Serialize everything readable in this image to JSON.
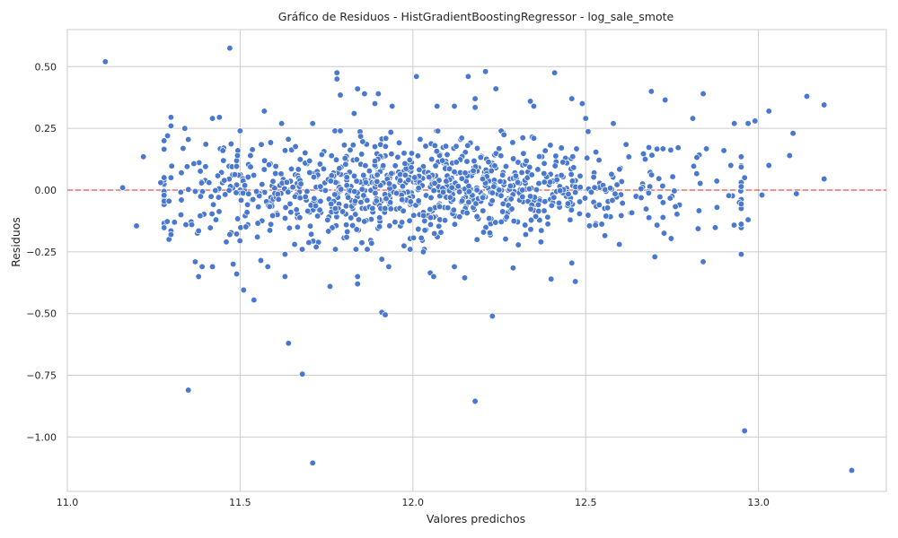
{
  "chart_data": {
    "type": "scatter",
    "title": "Gráfico de Residuos - HistGradientBoostingRegressor - log_sale_smote",
    "xlabel": "Valores predichos",
    "ylabel": "Residuos",
    "xlim": [
      11.0,
      13.37
    ],
    "ylim": [
      -1.22,
      0.65
    ],
    "xticks": [
      11.0,
      11.5,
      12.0,
      12.5,
      13.0
    ],
    "xtick_labels": [
      "11.0",
      "11.5",
      "12.0",
      "12.5",
      "13.0"
    ],
    "yticks": [
      0.5,
      0.25,
      0.0,
      -0.25,
      -0.5,
      -0.75,
      -1.0
    ],
    "ytick_labels": [
      "0.50",
      "0.25",
      "0.00",
      "−0.25",
      "−0.50",
      "−0.75",
      "−1.00"
    ],
    "grid": true,
    "reference_line": {
      "y": 0.0,
      "color": "#d9534f",
      "style": "dashed"
    },
    "marker_color": "#4878d0",
    "generated_cloud": {
      "count": 1000,
      "x_center": 12.05,
      "x_std": 0.38,
      "x_min": 11.28,
      "x_max": 12.95,
      "y_std": 0.1,
      "y_min": -0.24,
      "y_max": 0.24,
      "seed": 7
    },
    "points": [
      [
        11.11,
        0.52
      ],
      [
        11.16,
        0.01
      ],
      [
        11.2,
        -0.145
      ],
      [
        11.22,
        0.135
      ],
      [
        11.27,
        0.03
      ],
      [
        11.3,
        0.295
      ],
      [
        11.3,
        0.26
      ],
      [
        11.29,
        0.22
      ],
      [
        11.28,
        0.2
      ],
      [
        11.3,
        0.05
      ],
      [
        11.3,
        -0.165
      ],
      [
        11.3,
        -0.18
      ],
      [
        11.31,
        -0.13
      ],
      [
        11.33,
        -0.04
      ],
      [
        11.34,
        0.25
      ],
      [
        11.35,
        0.205
      ],
      [
        11.35,
        -0.81
      ],
      [
        11.37,
        -0.29
      ],
      [
        11.38,
        -0.35
      ],
      [
        11.39,
        -0.31
      ],
      [
        11.42,
        -0.31
      ],
      [
        11.42,
        0.29
      ],
      [
        11.44,
        0.295
      ],
      [
        11.47,
        0.575
      ],
      [
        11.48,
        -0.3
      ],
      [
        11.49,
        -0.34
      ],
      [
        11.5,
        0.24
      ],
      [
        11.51,
        -0.405
      ],
      [
        11.54,
        -0.445
      ],
      [
        11.56,
        -0.285
      ],
      [
        11.57,
        0.32
      ],
      [
        11.58,
        -0.31
      ],
      [
        11.62,
        0.27
      ],
      [
        11.63,
        -0.35
      ],
      [
        11.64,
        -0.62
      ],
      [
        11.63,
        -0.26
      ],
      [
        11.68,
        -0.745
      ],
      [
        11.71,
        -1.105
      ],
      [
        11.71,
        0.27
      ],
      [
        11.72,
        -0.23
      ],
      [
        11.76,
        -0.39
      ],
      [
        11.78,
        0.475
      ],
      [
        11.78,
        0.45
      ],
      [
        11.79,
        0.385
      ],
      [
        11.83,
        0.31
      ],
      [
        11.84,
        0.41
      ],
      [
        11.84,
        -0.38
      ],
      [
        11.84,
        -0.35
      ],
      [
        11.86,
        0.39
      ],
      [
        11.89,
        0.35
      ],
      [
        11.9,
        0.39
      ],
      [
        11.91,
        -0.495
      ],
      [
        11.92,
        -0.505
      ],
      [
        11.91,
        -0.28
      ],
      [
        11.93,
        -0.31
      ],
      [
        11.94,
        0.34
      ],
      [
        12.01,
        0.46
      ],
      [
        12.03,
        -0.25
      ],
      [
        12.05,
        -0.335
      ],
      [
        12.06,
        -0.35
      ],
      [
        12.07,
        0.34
      ],
      [
        12.12,
        -0.31
      ],
      [
        12.12,
        0.34
      ],
      [
        12.15,
        -0.355
      ],
      [
        12.16,
        0.46
      ],
      [
        12.18,
        0.37
      ],
      [
        12.18,
        0.335
      ],
      [
        12.18,
        -0.855
      ],
      [
        12.21,
        0.48
      ],
      [
        12.23,
        -0.51
      ],
      [
        12.24,
        0.41
      ],
      [
        12.29,
        -0.315
      ],
      [
        12.34,
        0.36
      ],
      [
        12.35,
        0.34
      ],
      [
        12.4,
        -0.36
      ],
      [
        12.41,
        0.475
      ],
      [
        12.46,
        0.37
      ],
      [
        12.46,
        -0.295
      ],
      [
        12.47,
        -0.37
      ],
      [
        12.49,
        0.35
      ],
      [
        12.5,
        0.29
      ],
      [
        12.58,
        0.27
      ],
      [
        12.69,
        0.4
      ],
      [
        12.7,
        -0.27
      ],
      [
        12.73,
        0.365
      ],
      [
        12.81,
        0.29
      ],
      [
        12.84,
        0.39
      ],
      [
        12.84,
        -0.29
      ],
      [
        12.96,
        -0.975
      ],
      [
        12.93,
        0.27
      ],
      [
        12.97,
        0.27
      ],
      [
        12.99,
        0.28
      ],
      [
        13.01,
        -0.02
      ],
      [
        13.03,
        0.32
      ],
      [
        13.03,
        0.1
      ],
      [
        13.09,
        0.14
      ],
      [
        13.1,
        0.23
      ],
      [
        13.11,
        -0.015
      ],
      [
        13.14,
        0.38
      ],
      [
        13.19,
        0.345
      ],
      [
        13.19,
        0.045
      ],
      [
        13.27,
        -1.135
      ],
      [
        12.95,
        -0.26
      ],
      [
        12.96,
        0.05
      ],
      [
        12.97,
        -0.12
      ],
      [
        12.92,
        0.1
      ],
      [
        12.9,
        0.16
      ],
      [
        12.88,
        -0.07
      ],
      [
        12.35,
        0.21
      ],
      [
        11.45,
        0.16
      ],
      [
        11.47,
        -0.18
      ],
      [
        11.46,
        -0.21
      ],
      [
        11.36,
        -0.14
      ],
      [
        11.38,
        -0.165
      ],
      [
        11.33,
        0.07
      ],
      [
        11.4,
        0.095
      ],
      [
        11.41,
        0.03
      ],
      [
        11.43,
        -0.12
      ],
      [
        11.52,
        -0.09
      ],
      [
        11.55,
        -0.19
      ]
    ]
  }
}
